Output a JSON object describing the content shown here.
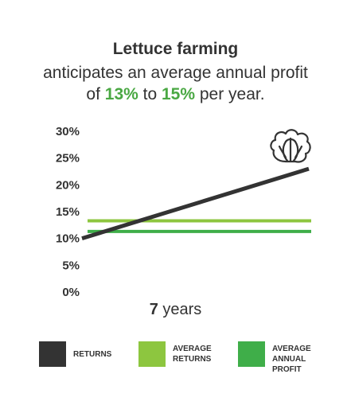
{
  "header": {
    "title": "Lettuce farming",
    "subtitle_line1": "anticipates an average annual profit",
    "subtitle_pre": "of ",
    "subtitle_low": "13%",
    "subtitle_mid": " to ",
    "subtitle_high": "15%",
    "subtitle_post": " per year."
  },
  "footer": {
    "years_number": "7",
    "years_unit": " years"
  },
  "icon": "lettuce-icon",
  "colors": {
    "returns": "#333333",
    "average_returns": "#8dc63f",
    "average_annual_profit": "#3fae49",
    "highlight": "#4aa843"
  },
  "chart_data": {
    "type": "line",
    "y_ticks": [
      "30%",
      "25%",
      "20%",
      "15%",
      "10%",
      "5%",
      "0%"
    ],
    "ylim": [
      0,
      30
    ],
    "x": [
      0,
      7
    ],
    "series": [
      {
        "name": "RETURNS",
        "values": [
          10,
          23
        ],
        "color": "#333333"
      },
      {
        "name": "AVERAGE RETURNS",
        "values": [
          13.3,
          13.3
        ],
        "color": "#8dc63f"
      },
      {
        "name": "AVERAGE ANNUAL PROFIT",
        "values": [
          11.3,
          11.3
        ],
        "color": "#3fae49"
      }
    ],
    "legend": {
      "position": "bottom",
      "items": [
        {
          "label_lines": [
            "RETURNS"
          ],
          "color": "#333333"
        },
        {
          "label_lines": [
            "AVERAGE",
            "RETURNS"
          ],
          "color": "#8dc63f"
        },
        {
          "label_lines": [
            "AVERAGE",
            "ANNUAL",
            "PROFIT"
          ],
          "color": "#3fae49"
        }
      ]
    }
  }
}
